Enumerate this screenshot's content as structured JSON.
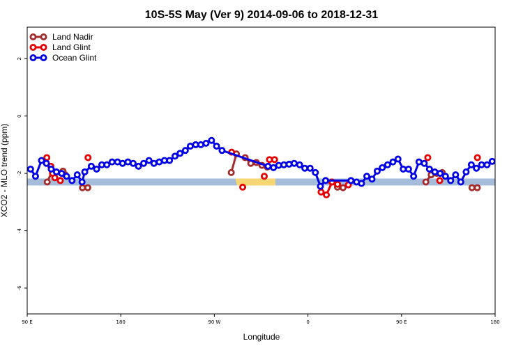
{
  "chart_data": {
    "type": "line",
    "title": "10S-5S May (Ver 9)   2014-09-06 to 2018-12-31",
    "xlabel": "Longitude",
    "ylabel": "XCO2 - MLO trend (ppm)",
    "xlim": [
      90,
      450
    ],
    "ylim": [
      -6.9,
      3.1
    ],
    "x_ticks": [
      {
        "value": 90,
        "label": "90 E"
      },
      {
        "value": 162,
        "label": "180"
      },
      {
        "value": 234,
        "label": "90 W"
      },
      {
        "value": 306,
        "label": "0"
      },
      {
        "value": 378,
        "label": "90 E"
      },
      {
        "value": 450,
        "label": "180"
      }
    ],
    "y_ticks": [
      {
        "value": 2,
        "label": "2"
      },
      {
        "value": 0,
        "label": "0"
      },
      {
        "value": -2,
        "label": "-2"
      },
      {
        "value": -4,
        "label": "-4"
      },
      {
        "value": -6,
        "label": "-6"
      }
    ],
    "legend": {
      "placement": "top-left"
    },
    "band": {
      "y_center": -2.3,
      "color": "#a5bddb"
    },
    "series": [
      {
        "name": "Land Nadir",
        "color": "#a52a2a",
        "segments": [
          [
            [
              105.4,
              -2.3
            ],
            [
              109.3,
              -1.92
            ]
          ],
          [
            [
              117.5,
              -1.92
            ],
            [
              119.2,
              -2.05
            ]
          ],
          [
            [
              132.5,
              -2.5
            ],
            [
              136.6,
              -2.5
            ]
          ],
          [
            [
              247,
              -1.97
            ],
            [
              251,
              -1.32
            ]
          ],
          [
            [
              257.7,
              -1.45
            ],
            [
              262,
              -1.65
            ],
            [
              266.3,
              -1.62
            ],
            [
              270.6,
              -1.72
            ],
            [
              274.7,
              -1.78
            ]
          ],
          [
            [
              324.2,
              -2.3
            ],
            [
              328.7,
              -2.48
            ],
            [
              333,
              -2.5
            ]
          ],
          [
            [
              396.7,
              -2.3
            ],
            [
              400.8,
              -2.05
            ],
            [
              405.1,
              -2.0
            ],
            [
              409.3,
              -1.97
            ]
          ],
          [
            [
              432.2,
              -2.5
            ],
            [
              436.3,
              -2.5
            ]
          ]
        ]
      },
      {
        "name": "Land Glint",
        "color": "#e60000",
        "segments": [
          [
            [
              105.1,
              -1.45
            ]
          ],
          [
            [
              108.2,
              -1.75
            ],
            [
              109.5,
              -2.0
            ],
            [
              111.2,
              -2.15
            ],
            [
              115.5,
              -2.25
            ]
          ],
          [
            [
              136.8,
              -1.45
            ]
          ],
          [
            [
              247.3,
              -1.26
            ]
          ],
          [
            [
              255.8,
              -2.48
            ]
          ],
          [
            [
              272.4,
              -2.1
            ]
          ],
          [
            [
              276.4,
              -1.52
            ],
            [
              280.3,
              -1.52
            ]
          ],
          [
            [
              316.1,
              -2.65
            ],
            [
              320.2,
              -2.75
            ],
            [
              324.6,
              -2.3
            ],
            [
              328.8,
              -2.38
            ]
          ],
          [
            [
              337.1,
              -2.4
            ]
          ],
          [
            [
              398.2,
              -1.45
            ]
          ],
          [
            [
              407.4,
              -2.25
            ]
          ],
          [
            [
              436.4,
              -1.45
            ]
          ]
        ]
      },
      {
        "name": "Ocean Glint",
        "color": "#0000e6",
        "points": [
          [
            92.6,
            -1.85
          ],
          [
            96.4,
            -2.1
          ],
          [
            101.0,
            -1.55
          ],
          [
            104.8,
            -1.65
          ],
          [
            108.5,
            -1.85
          ],
          [
            112.5,
            -1.95
          ],
          [
            116.5,
            -2.0
          ],
          [
            120.3,
            -2.1
          ],
          [
            124.5,
            -2.25
          ],
          [
            128.5,
            -2.05
          ],
          [
            132.2,
            -2.3
          ],
          [
            134.3,
            -1.95
          ],
          [
            139.3,
            -1.75
          ],
          [
            143.4,
            -1.85
          ],
          [
            147.4,
            -1.7
          ],
          [
            151.3,
            -1.7
          ],
          [
            155.3,
            -1.6
          ],
          [
            159.5,
            -1.6
          ],
          [
            163.4,
            -1.65
          ],
          [
            167.5,
            -1.6
          ],
          [
            171.5,
            -1.65
          ],
          [
            175.6,
            -1.75
          ],
          [
            179.6,
            -1.65
          ],
          [
            183.7,
            -1.55
          ],
          [
            187.5,
            -1.65
          ],
          [
            191.6,
            -1.6
          ],
          [
            195.6,
            -1.55
          ],
          [
            199.5,
            -1.55
          ],
          [
            203.7,
            -1.4
          ],
          [
            207.6,
            -1.3
          ],
          [
            211.7,
            -1.2
          ],
          [
            215.5,
            -1.05
          ],
          [
            219.6,
            -1.0
          ],
          [
            223.6,
            -1.0
          ],
          [
            227.6,
            -0.95
          ],
          [
            231.8,
            -0.85
          ],
          [
            235.7,
            -1.05
          ],
          [
            239.9,
            -1.2
          ],
          [
            275.3,
            -1.75
          ],
          [
            279.5,
            -1.8
          ],
          [
            283.5,
            -1.72
          ],
          [
            287.5,
            -1.7
          ],
          [
            291.5,
            -1.68
          ],
          [
            295.4,
            -1.65
          ],
          [
            299.6,
            -1.7
          ],
          [
            303.6,
            -1.82
          ],
          [
            307.7,
            -1.82
          ],
          [
            311.7,
            -1.97
          ],
          [
            315.6,
            -2.45
          ],
          [
            319.6,
            -2.25
          ],
          [
            339.1,
            -2.25
          ],
          [
            343.4,
            -2.3
          ],
          [
            347.2,
            -2.35
          ],
          [
            351.3,
            -2.1
          ],
          [
            355.3,
            -2.2
          ],
          [
            359.3,
            -1.92
          ],
          [
            363.2,
            -1.8
          ],
          [
            367.3,
            -1.7
          ],
          [
            371.4,
            -1.6
          ],
          [
            375.3,
            -1.5
          ],
          [
            379.3,
            -1.85
          ],
          [
            383.4,
            -1.85
          ],
          [
            387.3,
            -2.1
          ],
          [
            391.4,
            -1.6
          ],
          [
            395.5,
            -1.65
          ],
          [
            399.5,
            -1.85
          ],
          [
            403.6,
            -1.95
          ],
          [
            407.7,
            -2.0
          ],
          [
            411.8,
            -2.1
          ],
          [
            415.8,
            -2.25
          ],
          [
            419.6,
            -2.05
          ],
          [
            423.6,
            -2.3
          ],
          [
            427.7,
            -1.95
          ],
          [
            431.7,
            -1.7
          ],
          [
            435.6,
            -1.82
          ],
          [
            439.6,
            -1.7
          ],
          [
            443.8,
            -1.7
          ],
          [
            447.8,
            -1.58
          ],
          [
            451.7,
            -1.6
          ]
        ]
      }
    ]
  }
}
